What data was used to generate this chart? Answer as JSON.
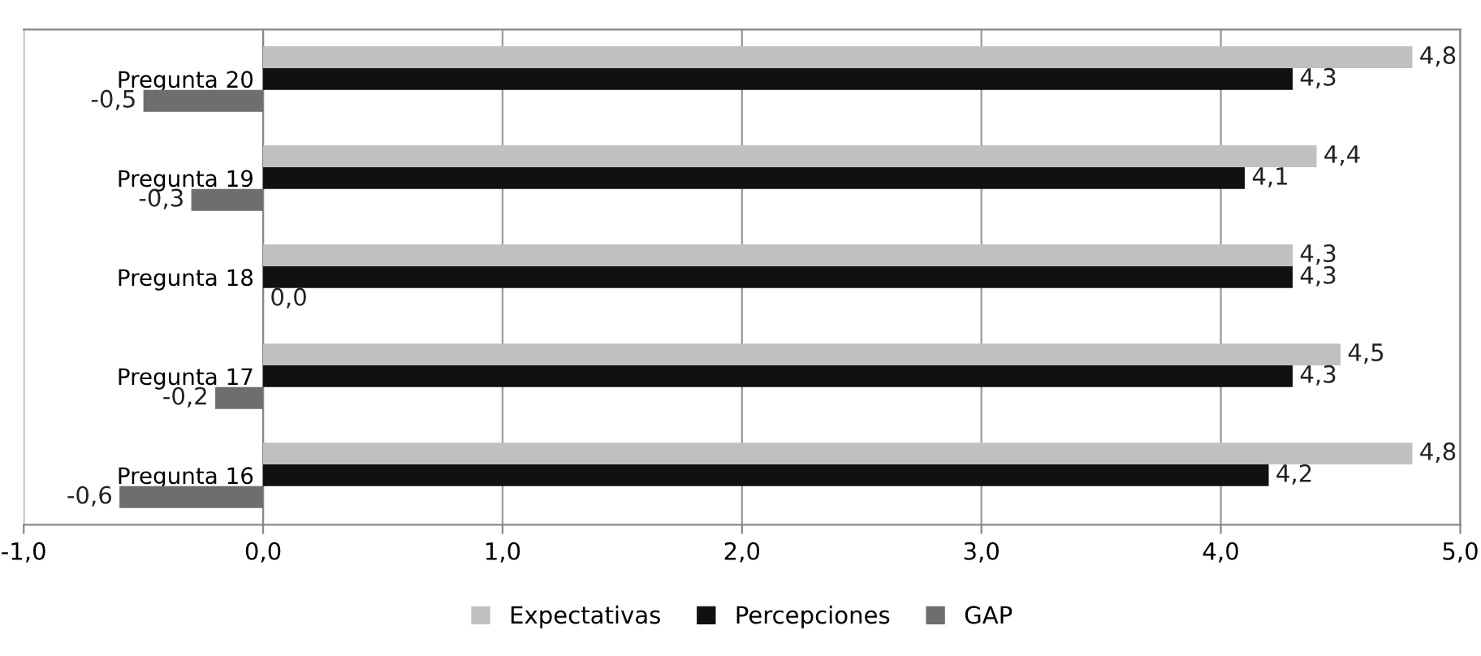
{
  "chart_data": {
    "type": "bar",
    "orientation": "horizontal",
    "categories": [
      "Pregunta 20",
      "Pregunta 19",
      "Pregunta 18",
      "Pregunta 17",
      "Pregunta 16"
    ],
    "series": [
      {
        "name": "Expectativas",
        "color": "#c0c0c0",
        "values": [
          4.8,
          4.4,
          4.3,
          4.5,
          4.8
        ],
        "value_labels": [
          "4,8",
          "4,4",
          "4,3",
          "4,5",
          "4,8"
        ]
      },
      {
        "name": "Percepciones",
        "color": "#111111",
        "values": [
          4.3,
          4.1,
          4.3,
          4.3,
          4.2
        ],
        "value_labels": [
          "4,3",
          "4,1",
          "4,3",
          "4,3",
          "4,2"
        ]
      },
      {
        "name": "GAP",
        "color": "#6e6e6e",
        "values": [
          -0.5,
          -0.3,
          0.0,
          -0.2,
          -0.6
        ],
        "value_labels": [
          "-0,5",
          "-0,3",
          "0,0",
          "-0,2",
          "-0,6"
        ]
      }
    ],
    "xlim": [
      -1,
      5
    ],
    "xticks": [
      {
        "value": -1,
        "label": "-1,0"
      },
      {
        "value": 0,
        "label": "0,0"
      },
      {
        "value": 1,
        "label": "1,0"
      },
      {
        "value": 2,
        "label": "2,0"
      },
      {
        "value": 3,
        "label": "3,0"
      },
      {
        "value": 4,
        "label": "4,0"
      },
      {
        "value": 5,
        "label": "5,0"
      }
    ],
    "grid": "x",
    "legend": "bottom"
  }
}
